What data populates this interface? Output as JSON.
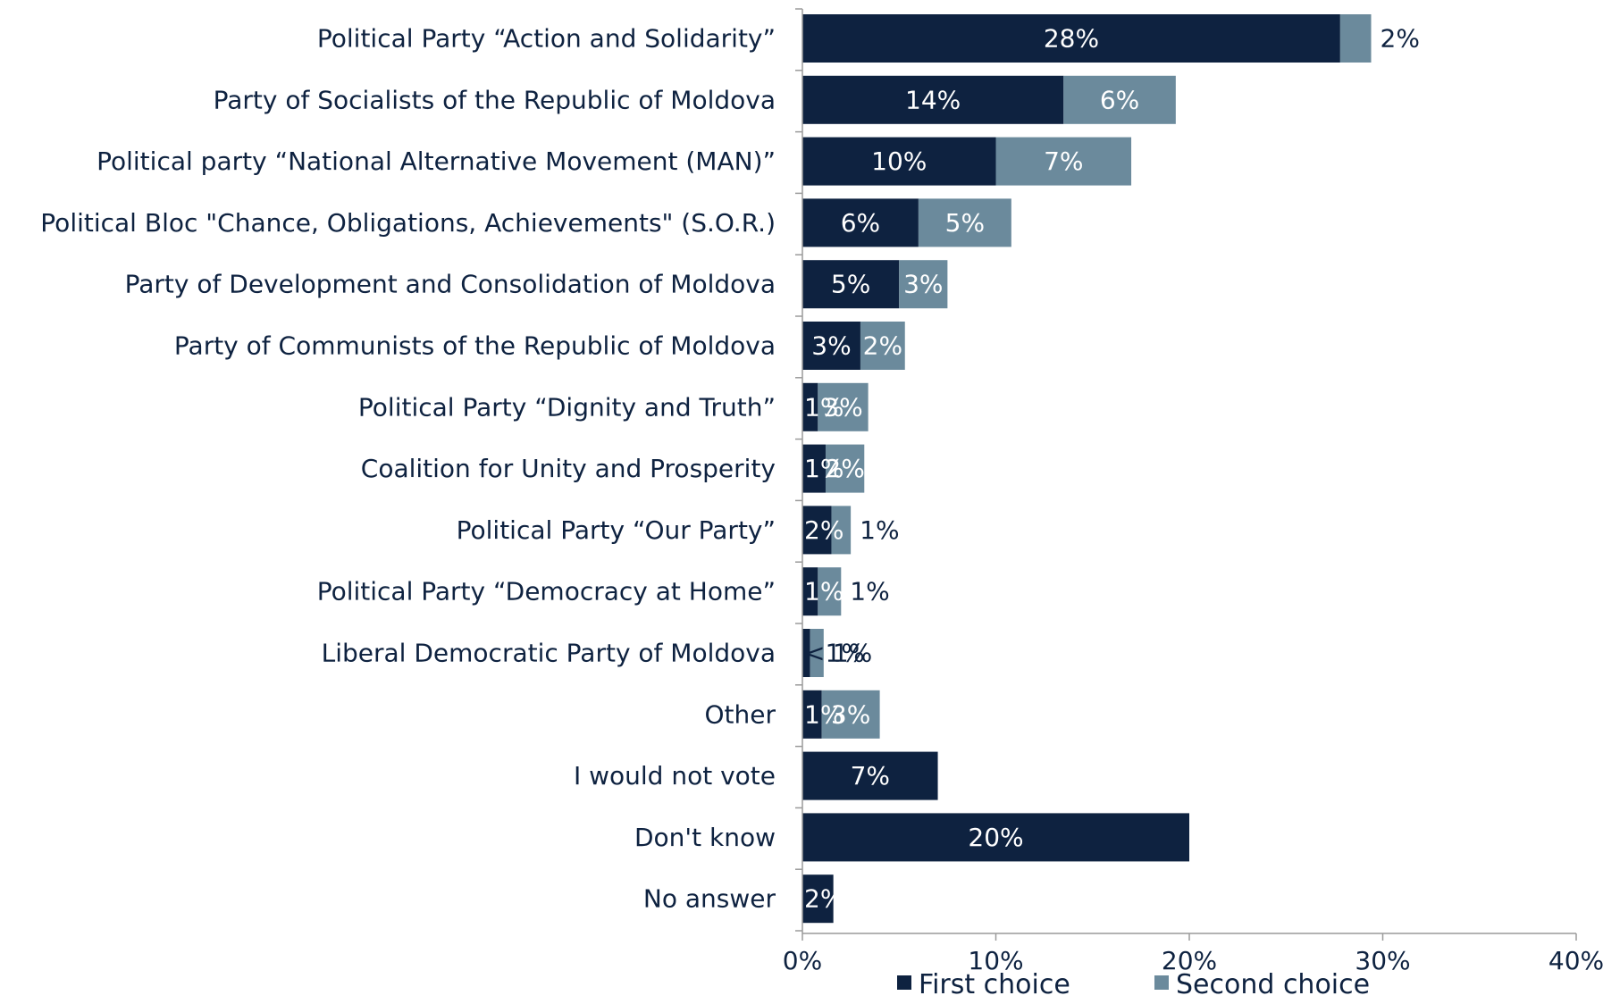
{
  "chart_data": {
    "type": "bar",
    "orientation": "horizontal",
    "stacked": true,
    "title": "",
    "xlabel": "",
    "ylabel": "",
    "xlim": [
      0,
      40
    ],
    "x_ticks": [
      {
        "value": 0,
        "label": "0%"
      },
      {
        "value": 10,
        "label": "10%"
      },
      {
        "value": 20,
        "label": "20%"
      },
      {
        "value": 30,
        "label": "30%"
      },
      {
        "value": 40,
        "label": "40%"
      }
    ],
    "grid": false,
    "legend": "bottom",
    "categories": [
      "Political Party “Action and Solidarity”",
      "Party of Socialists of the Republic of Moldova",
      "Political party “National Alternative Movement (MAN)”",
      "Political Bloc \"Chance, Obligations, Achievements\" (S.O.R.)",
      "Party of Development and Consolidation of Moldova",
      "Party of Communists of the Republic of Moldova",
      "Political Party “Dignity and Truth”",
      "Coalition for Unity and Prosperity",
      "Political Party “Our Party”",
      "Political Party “Democracy at Home”",
      "Liberal Democratic Party of Moldova",
      "Other",
      "I would not vote",
      "Don't know",
      "No answer"
    ],
    "series": [
      {
        "name": "First choice",
        "color": "#0e2240",
        "values": [
          27.8,
          13.5,
          10,
          6,
          5,
          3,
          0.8,
          1.2,
          1.5,
          0.8,
          0.4,
          1,
          7,
          20,
          1.6
        ],
        "labels": [
          "28%",
          "14%",
          "10%",
          "6%",
          "5%",
          "3%",
          "1%",
          "1%",
          "2%",
          "1%",
          "<1%",
          "1%",
          "7%",
          "20%",
          "2%"
        ]
      },
      {
        "name": "Second choice",
        "color": "#6b8a9c",
        "values": [
          1.6,
          5.8,
          7,
          4.8,
          2.5,
          2.3,
          2.6,
          2,
          1,
          1.2,
          0.7,
          3,
          0,
          0,
          0
        ],
        "labels": [
          "2%",
          "6%",
          "7%",
          "5%",
          "3%",
          "2%",
          "3%",
          "2%",
          "1%",
          "1%",
          "1%",
          "3%",
          "",
          "",
          ""
        ]
      }
    ]
  }
}
